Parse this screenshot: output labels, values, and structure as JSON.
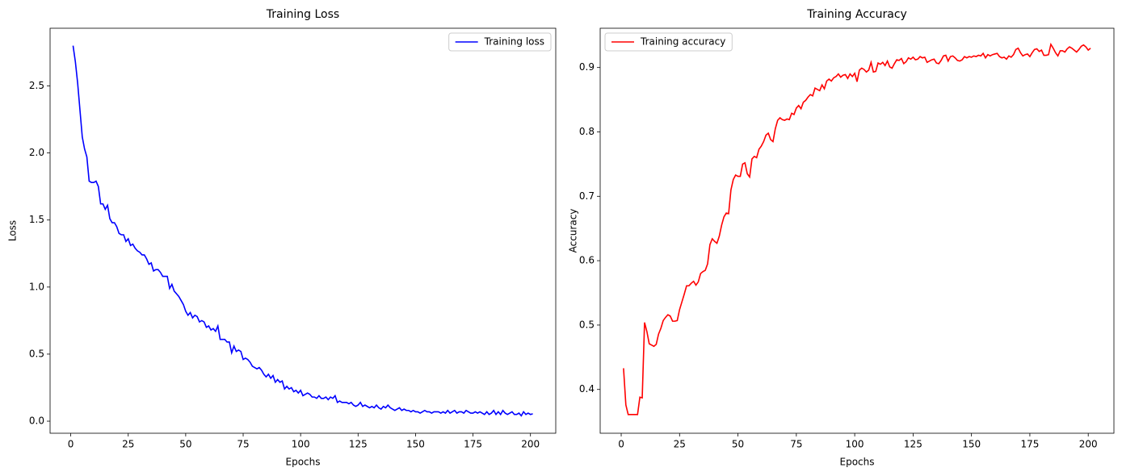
{
  "chart_data": [
    {
      "type": "line",
      "title": "Training Loss",
      "xlabel": "Epochs",
      "ylabel": "Loss",
      "x": [
        1,
        2,
        3,
        4,
        5,
        6,
        7,
        8,
        9,
        10,
        11,
        12,
        13,
        14,
        15,
        16,
        17,
        18,
        19,
        20,
        21,
        22,
        23,
        24,
        25,
        26,
        27,
        28,
        29,
        30,
        31,
        32,
        33,
        34,
        35,
        36,
        37,
        38,
        39,
        40,
        41,
        42,
        43,
        44,
        45,
        46,
        47,
        48,
        49,
        50,
        51,
        52,
        53,
        54,
        55,
        56,
        57,
        58,
        59,
        60,
        61,
        62,
        63,
        64,
        65,
        66,
        67,
        68,
        69,
        70,
        71,
        72,
        73,
        74,
        75,
        76,
        77,
        78,
        79,
        80,
        81,
        82,
        83,
        84,
        85,
        86,
        87,
        88,
        89,
        90,
        91,
        92,
        93,
        94,
        95,
        96,
        97,
        98,
        99,
        100,
        101,
        102,
        103,
        104,
        105,
        106,
        107,
        108,
        109,
        110,
        111,
        112,
        113,
        114,
        115,
        116,
        117,
        118,
        119,
        120,
        121,
        122,
        123,
        124,
        125,
        126,
        127,
        128,
        129,
        130,
        131,
        132,
        133,
        134,
        135,
        136,
        137,
        138,
        139,
        140,
        141,
        142,
        143,
        144,
        145,
        146,
        147,
        148,
        149,
        150,
        151,
        152,
        153,
        154,
        155,
        156,
        157,
        158,
        159,
        160,
        161,
        162,
        163,
        164,
        165,
        166,
        167,
        168,
        169,
        170,
        171,
        172,
        173,
        174,
        175,
        176,
        177,
        178,
        179,
        180,
        181,
        182,
        183,
        184,
        185,
        186,
        187,
        188,
        189,
        190,
        191,
        192,
        193,
        194,
        195,
        196,
        197,
        198,
        199,
        200,
        201
      ],
      "series": [
        {
          "name": "Training loss",
          "color": "#0000ff",
          "values": [
            2.8,
            2.68,
            2.52,
            2.32,
            2.12,
            2.03,
            1.97,
            1.79,
            1.78,
            1.78,
            1.79,
            1.75,
            1.62,
            1.62,
            1.58,
            1.61,
            1.51,
            1.48,
            1.48,
            1.45,
            1.4,
            1.39,
            1.39,
            1.34,
            1.36,
            1.31,
            1.32,
            1.29,
            1.27,
            1.26,
            1.24,
            1.24,
            1.21,
            1.17,
            1.18,
            1.12,
            1.13,
            1.13,
            1.11,
            1.08,
            1.08,
            1.08,
            0.99,
            1.02,
            0.97,
            0.95,
            0.93,
            0.9,
            0.87,
            0.82,
            0.79,
            0.81,
            0.77,
            0.79,
            0.78,
            0.74,
            0.75,
            0.74,
            0.7,
            0.71,
            0.68,
            0.69,
            0.67,
            0.71,
            0.61,
            0.61,
            0.61,
            0.59,
            0.59,
            0.51,
            0.56,
            0.52,
            0.53,
            0.52,
            0.46,
            0.47,
            0.46,
            0.44,
            0.41,
            0.4,
            0.39,
            0.4,
            0.38,
            0.35,
            0.33,
            0.35,
            0.32,
            0.34,
            0.29,
            0.31,
            0.29,
            0.3,
            0.24,
            0.26,
            0.24,
            0.25,
            0.22,
            0.23,
            0.21,
            0.23,
            0.19,
            0.2,
            0.21,
            0.2,
            0.18,
            0.18,
            0.17,
            0.19,
            0.17,
            0.17,
            0.18,
            0.16,
            0.18,
            0.17,
            0.19,
            0.14,
            0.15,
            0.14,
            0.14,
            0.14,
            0.13,
            0.14,
            0.12,
            0.11,
            0.12,
            0.14,
            0.11,
            0.12,
            0.11,
            0.1,
            0.11,
            0.1,
            0.12,
            0.1,
            0.09,
            0.11,
            0.1,
            0.12,
            0.1,
            0.09,
            0.08,
            0.09,
            0.1,
            0.08,
            0.09,
            0.08,
            0.08,
            0.07,
            0.08,
            0.07,
            0.07,
            0.06,
            0.07,
            0.08,
            0.07,
            0.07,
            0.06,
            0.07,
            0.07,
            0.07,
            0.06,
            0.07,
            0.06,
            0.08,
            0.06,
            0.07,
            0.08,
            0.06,
            0.07,
            0.07,
            0.06,
            0.08,
            0.07,
            0.06,
            0.06,
            0.07,
            0.06,
            0.07,
            0.06,
            0.05,
            0.07,
            0.05,
            0.06,
            0.08,
            0.05,
            0.07,
            0.05,
            0.08,
            0.06,
            0.05,
            0.06,
            0.07,
            0.05,
            0.05,
            0.06,
            0.04,
            0.07,
            0.05,
            0.06,
            0.05,
            0.055
          ]
        }
      ],
      "xlim": [
        -9,
        211
      ],
      "ylim": [
        -0.09,
        2.93
      ],
      "xticks": [
        0,
        25,
        50,
        75,
        100,
        125,
        150,
        175,
        200
      ],
      "yticks": [
        {
          "value": 0,
          "label": "0.0"
        },
        0.5,
        {
          "value": 1,
          "label": "1.0"
        },
        1.5,
        {
          "value": 2,
          "label": "2.0"
        },
        2.5
      ],
      "legend": "upper right"
    },
    {
      "type": "line",
      "title": "Training Accuracy",
      "xlabel": "Epochs",
      "ylabel": "Accuracy",
      "x": [
        1,
        2,
        3,
        4,
        5,
        6,
        7,
        8,
        9,
        10,
        11,
        12,
        13,
        14,
        15,
        16,
        17,
        18,
        19,
        20,
        21,
        22,
        23,
        24,
        25,
        26,
        27,
        28,
        29,
        30,
        31,
        32,
        33,
        34,
        35,
        36,
        37,
        38,
        39,
        40,
        41,
        42,
        43,
        44,
        45,
        46,
        47,
        48,
        49,
        50,
        51,
        52,
        53,
        54,
        55,
        56,
        57,
        58,
        59,
        60,
        61,
        62,
        63,
        64,
        65,
        66,
        67,
        68,
        69,
        70,
        71,
        72,
        73,
        74,
        75,
        76,
        77,
        78,
        79,
        80,
        81,
        82,
        83,
        84,
        85,
        86,
        87,
        88,
        89,
        90,
        91,
        92,
        93,
        94,
        95,
        96,
        97,
        98,
        99,
        100,
        101,
        102,
        103,
        104,
        105,
        106,
        107,
        108,
        109,
        110,
        111,
        112,
        113,
        114,
        115,
        116,
        117,
        118,
        119,
        120,
        121,
        122,
        123,
        124,
        125,
        126,
        127,
        128,
        129,
        130,
        131,
        132,
        133,
        134,
        135,
        136,
        137,
        138,
        139,
        140,
        141,
        142,
        143,
        144,
        145,
        146,
        147,
        148,
        149,
        150,
        151,
        152,
        153,
        154,
        155,
        156,
        157,
        158,
        159,
        160,
        161,
        162,
        163,
        164,
        165,
        166,
        167,
        168,
        169,
        170,
        171,
        172,
        173,
        174,
        175,
        176,
        177,
        178,
        179,
        180,
        181,
        182,
        183,
        184,
        185,
        186,
        187,
        188,
        189,
        190,
        191,
        192,
        193,
        194,
        195,
        196,
        197,
        198,
        199,
        200,
        201
      ],
      "series": [
        {
          "name": "Training accuracy",
          "color": "#ff0000",
          "values": [
            0.433,
            0.376,
            0.361,
            0.361,
            0.361,
            0.361,
            0.361,
            0.388,
            0.387,
            0.504,
            0.49,
            0.471,
            0.469,
            0.467,
            0.47,
            0.486,
            0.495,
            0.507,
            0.512,
            0.516,
            0.514,
            0.506,
            0.506,
            0.507,
            0.524,
            0.536,
            0.548,
            0.561,
            0.561,
            0.565,
            0.568,
            0.562,
            0.567,
            0.58,
            0.583,
            0.585,
            0.595,
            0.625,
            0.634,
            0.63,
            0.627,
            0.638,
            0.655,
            0.668,
            0.674,
            0.673,
            0.71,
            0.726,
            0.733,
            0.731,
            0.731,
            0.75,
            0.752,
            0.735,
            0.73,
            0.758,
            0.762,
            0.76,
            0.773,
            0.778,
            0.785,
            0.795,
            0.798,
            0.788,
            0.785,
            0.805,
            0.818,
            0.822,
            0.819,
            0.818,
            0.82,
            0.819,
            0.829,
            0.827,
            0.837,
            0.841,
            0.836,
            0.846,
            0.849,
            0.854,
            0.858,
            0.856,
            0.868,
            0.866,
            0.864,
            0.873,
            0.867,
            0.879,
            0.882,
            0.879,
            0.884,
            0.886,
            0.89,
            0.885,
            0.888,
            0.889,
            0.883,
            0.89,
            0.886,
            0.891,
            0.878,
            0.896,
            0.899,
            0.897,
            0.893,
            0.896,
            0.908,
            0.893,
            0.894,
            0.907,
            0.905,
            0.908,
            0.903,
            0.91,
            0.901,
            0.899,
            0.906,
            0.912,
            0.911,
            0.914,
            0.906,
            0.909,
            0.915,
            0.913,
            0.916,
            0.912,
            0.913,
            0.917,
            0.915,
            0.916,
            0.908,
            0.91,
            0.912,
            0.913,
            0.907,
            0.906,
            0.911,
            0.918,
            0.919,
            0.91,
            0.917,
            0.918,
            0.915,
            0.911,
            0.91,
            0.912,
            0.917,
            0.915,
            0.917,
            0.916,
            0.918,
            0.917,
            0.919,
            0.918,
            0.922,
            0.915,
            0.92,
            0.918,
            0.92,
            0.921,
            0.922,
            0.917,
            0.915,
            0.916,
            0.913,
            0.918,
            0.916,
            0.92,
            0.928,
            0.93,
            0.923,
            0.918,
            0.92,
            0.921,
            0.917,
            0.923,
            0.928,
            0.929,
            0.925,
            0.927,
            0.919,
            0.919,
            0.92,
            0.936,
            0.93,
            0.923,
            0.918,
            0.926,
            0.926,
            0.924,
            0.929,
            0.932,
            0.93,
            0.927,
            0.924,
            0.928,
            0.933,
            0.935,
            0.932,
            0.927,
            0.93
          ]
        }
      ],
      "xlim": [
        -9,
        211
      ],
      "ylim": [
        0.332,
        0.961
      ],
      "xticks": [
        0,
        25,
        50,
        75,
        100,
        125,
        150,
        175,
        200
      ],
      "yticks": [
        0.4,
        0.5,
        0.6,
        0.7,
        0.8,
        0.9
      ],
      "legend": "upper left"
    }
  ]
}
